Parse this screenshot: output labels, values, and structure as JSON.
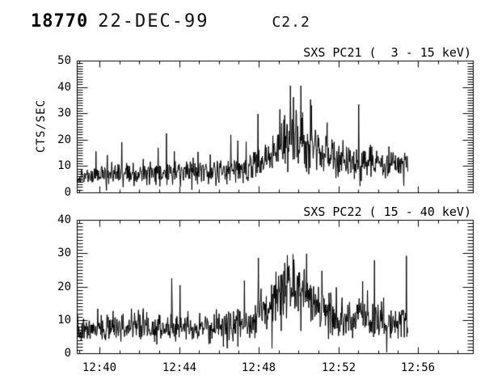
{
  "header": {
    "event_number": "18770",
    "date": "22-DEC-99",
    "flare_class": "C2.2"
  },
  "x_axis": {
    "tick_labels": [
      {
        "minute": 40,
        "label": "12:40"
      },
      {
        "minute": 44,
        "label": "12:44"
      },
      {
        "minute": 48,
        "label": "12:48"
      },
      {
        "minute": 52,
        "label": "12:52"
      },
      {
        "minute": 56,
        "label": "12:56"
      }
    ],
    "minor_step_minutes": 1,
    "hour": 12
  },
  "chart_data": [
    {
      "type": "line",
      "title": "SXS PC21 (  3 - 15 keV)",
      "ylabel": "CTS/SEC",
      "ylim": [
        0,
        50
      ],
      "yticks": [
        0,
        10,
        20,
        30,
        40,
        50
      ],
      "y_minor_step": 1,
      "x_minutes_range": [
        38.86,
        58.76
      ],
      "series": {
        "name": "SXS PC21",
        "start_minute": 38.9,
        "end_minute": 55.5,
        "step_minute": 0.022,
        "envelope_minutes_mean": [
          [
            38.9,
            5.5
          ],
          [
            40.0,
            6.8
          ],
          [
            42.0,
            7.0
          ],
          [
            44.0,
            7.2
          ],
          [
            46.0,
            8.0
          ],
          [
            47.5,
            9.5
          ],
          [
            48.4,
            11.5
          ],
          [
            48.8,
            15.0
          ],
          [
            49.1,
            21.0
          ],
          [
            50.2,
            19.5
          ],
          [
            51.3,
            13.5
          ],
          [
            52.3,
            11.5
          ],
          [
            53.5,
            10.5
          ],
          [
            55.5,
            10.5
          ]
        ],
        "noise_frac": 0.3,
        "spike_prob": 0.018,
        "spike_scale": 1.5,
        "value_max": 40.5,
        "peak_value": 40,
        "peak_minute": 49.2,
        "seed": 11
      }
    },
    {
      "type": "line",
      "title": "SXS PC22 ( 15 - 40 keV)",
      "ylabel": "",
      "ylim": [
        0,
        40
      ],
      "yticks": [
        0,
        10,
        20,
        30,
        40
      ],
      "y_minor_step": 1,
      "x_minutes_range": [
        38.86,
        58.76
      ],
      "series": {
        "name": "SXS PC22",
        "start_minute": 38.9,
        "end_minute": 55.5,
        "step_minute": 0.022,
        "envelope_minutes_mean": [
          [
            38.9,
            6.5
          ],
          [
            41.0,
            8.0
          ],
          [
            44.0,
            7.5
          ],
          [
            46.5,
            8.0
          ],
          [
            47.7,
            9.5
          ],
          [
            48.7,
            16.0
          ],
          [
            49.3,
            20.0
          ],
          [
            49.9,
            19.0
          ],
          [
            51.0,
            13.0
          ],
          [
            52.5,
            10.5
          ],
          [
            55.5,
            9.8
          ]
        ],
        "noise_frac": 0.28,
        "spike_prob": 0.015,
        "spike_scale": 1.3,
        "value_max": 32,
        "peak_value": 32,
        "peak_minute": 49.3,
        "seed": 7
      }
    }
  ]
}
